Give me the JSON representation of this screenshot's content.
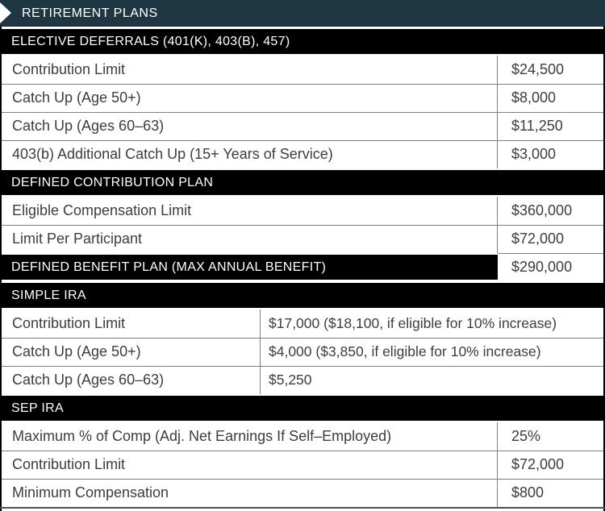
{
  "title_bar": {
    "title": "RETIREMENT PLANS"
  },
  "colors": {
    "title_bar_bg": "#1e3742",
    "section_bar_bg": "#000000",
    "title_text": "#ffffff",
    "row_text": "#3d3d3d",
    "grid_line": "#7f7f7f"
  },
  "sections": [
    {
      "title": "ELECTIVE DEFERRALS (401(K), 403(B), 457)",
      "rows": [
        {
          "label": "Contribution Limit",
          "value": "$24,500"
        },
        {
          "label": "Catch Up (Age 50+)",
          "value": "$8,000"
        },
        {
          "label": "Catch Up (Ages 60–63)",
          "value": "$11,250"
        },
        {
          "label": "403(b) Additional Catch Up (15+ Years of Service)",
          "value": "$3,000"
        }
      ]
    },
    {
      "title": "DEFINED CONTRIBUTION PLAN",
      "rows": [
        {
          "label": "Eligible Compensation Limit",
          "value": "$360,000"
        },
        {
          "label": "Limit Per Participant",
          "value": "$72,000"
        }
      ]
    },
    {
      "title": "DEFINED BENEFIT PLAN (MAX ANNUAL BENEFIT)",
      "value": "$290,000"
    },
    {
      "title": "SIMPLE IRA",
      "rows": [
        {
          "label": "Contribution Limit",
          "value": "$17,000 ($18,100, if eligible for 10% increase)"
        },
        {
          "label": "Catch Up (Age 50+)",
          "value": "$4,000 ($3,850, if eligible for 10% increase)"
        },
        {
          "label": "Catch Up (Ages 60–63)",
          "value": "$5,250"
        }
      ]
    },
    {
      "title": "SEP IRA",
      "rows": [
        {
          "label": "Maximum % of Comp (Adj. Net Earnings If Self–Employed)",
          "value": "25%"
        },
        {
          "label": "Contribution Limit",
          "value": "$72,000"
        },
        {
          "label": "Minimum Compensation",
          "value": "$800"
        }
      ]
    }
  ]
}
